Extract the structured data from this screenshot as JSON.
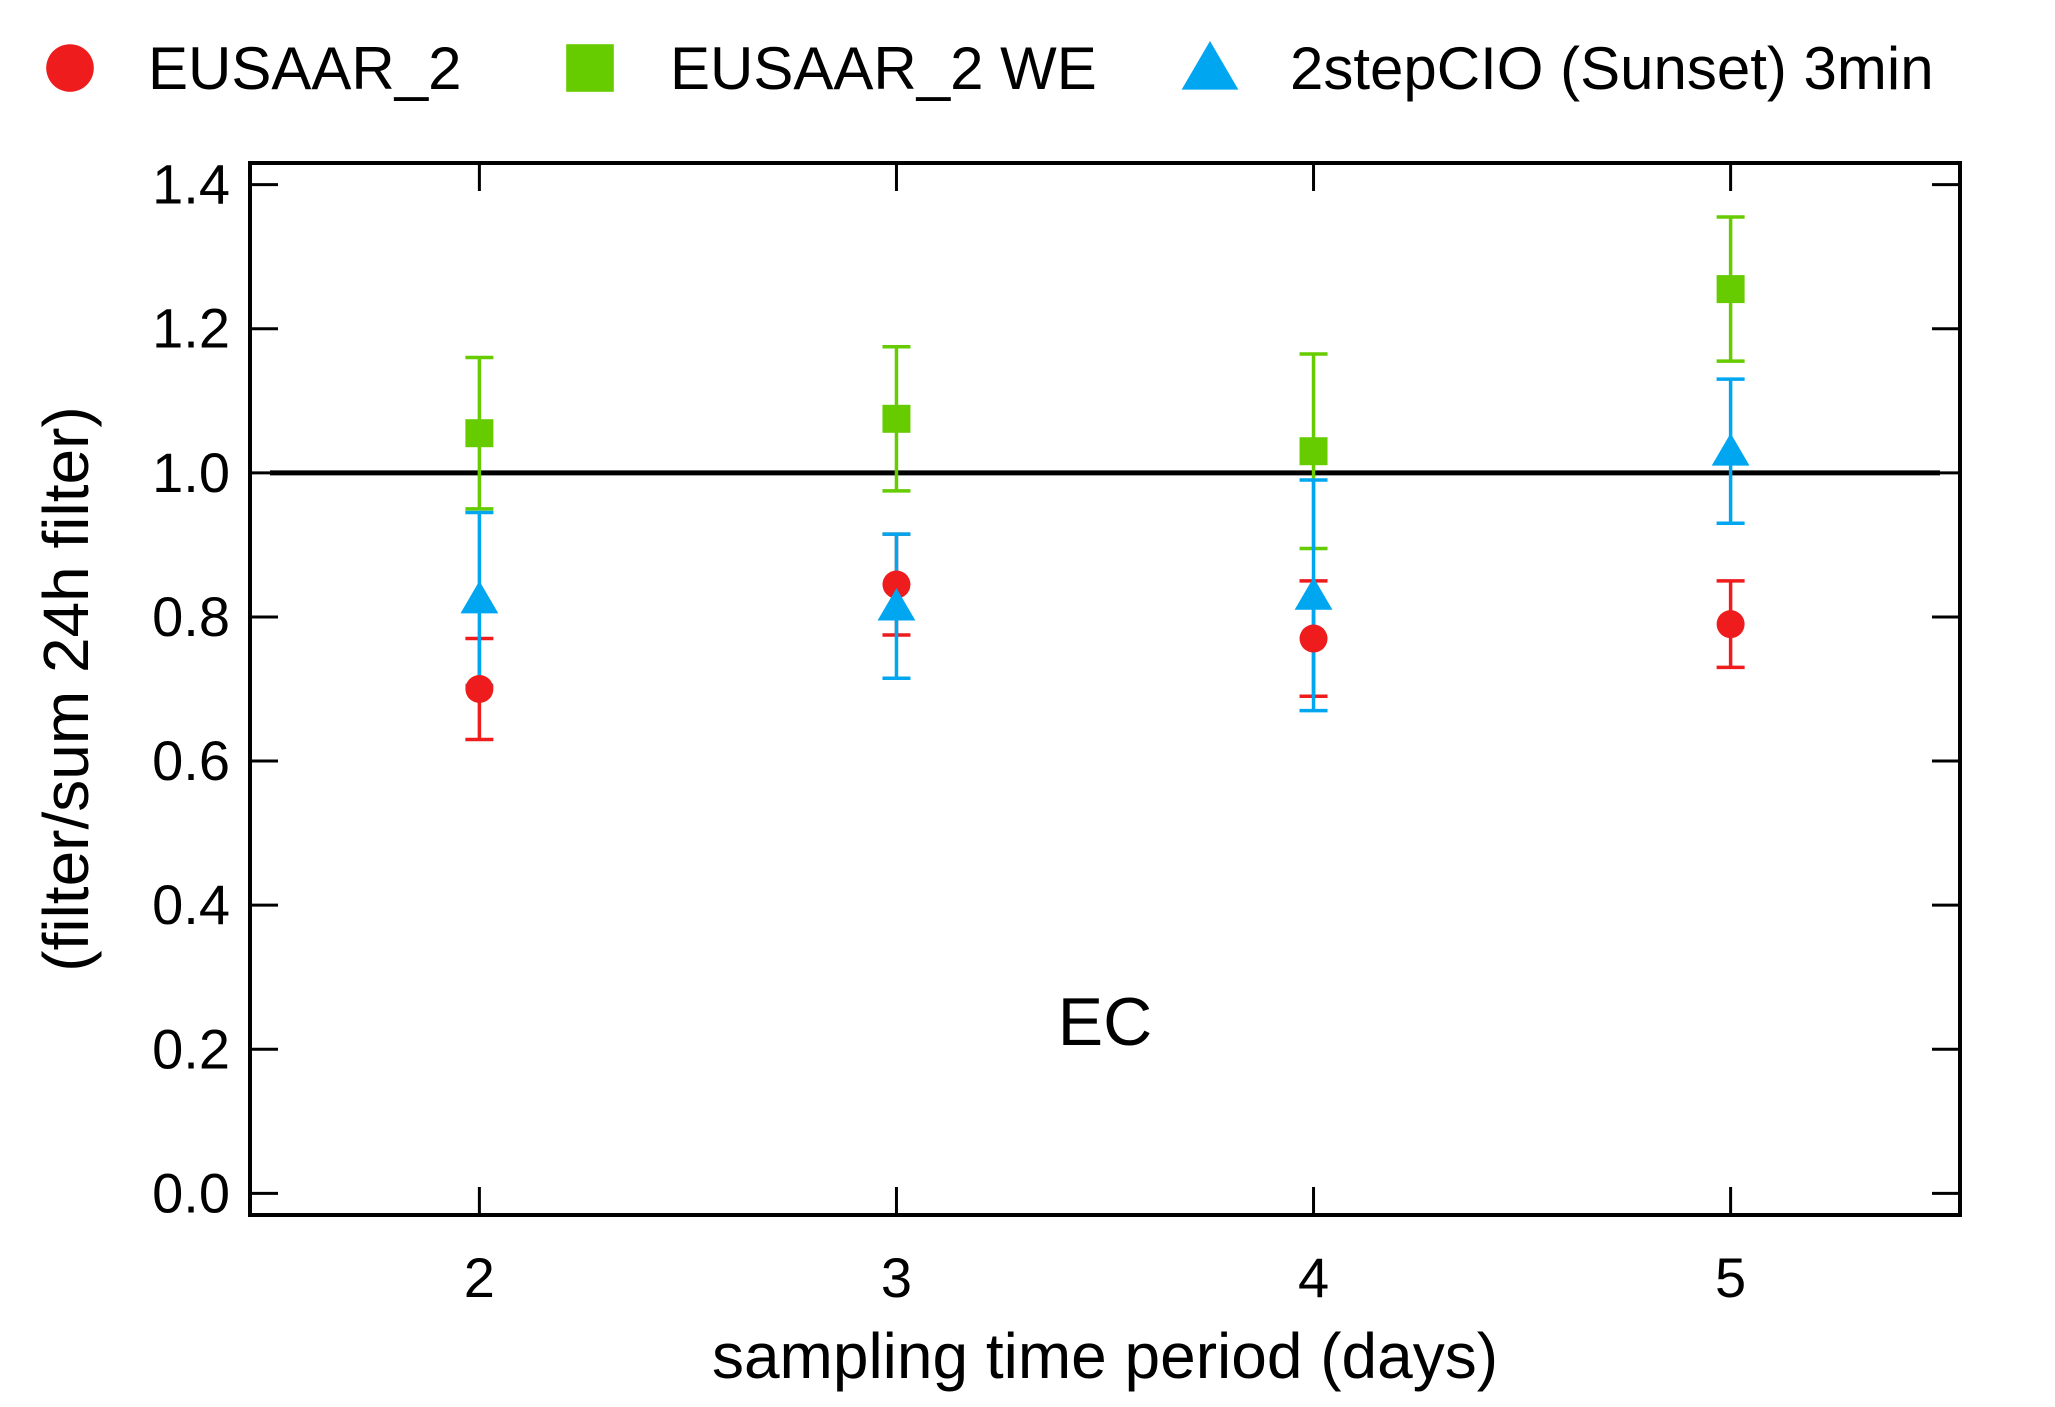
{
  "chart_data": {
    "type": "scatter",
    "title": "",
    "annotation": "EC",
    "xlabel": "sampling time period (days)",
    "ylabel": "(filter/sum 24h filter)",
    "xlim": [
      1.45,
      5.55
    ],
    "ylim": [
      -0.03,
      1.43
    ],
    "xticks": [
      2,
      3,
      4,
      5
    ],
    "xtick_labels": [
      "2",
      "3",
      "4",
      "5"
    ],
    "yticks": [
      0.0,
      0.2,
      0.4,
      0.6,
      0.8,
      1.0,
      1.2,
      1.4
    ],
    "ytick_labels": [
      "0.0",
      "0.2",
      "0.4",
      "0.6",
      "0.8",
      "1.0",
      "1.2",
      "1.4"
    ],
    "reference_line": 1.0,
    "grid": false,
    "legend_position": "top",
    "series": [
      {
        "name": "EUSAAR_2",
        "marker": "circle",
        "color": "#ee1c1c",
        "x": [
          2,
          3,
          4,
          5
        ],
        "y": [
          0.7,
          0.845,
          0.77,
          0.79
        ],
        "yerr": [
          0.07,
          0.07,
          0.08,
          0.06
        ]
      },
      {
        "name": "EUSAAR_2 WE",
        "marker": "square",
        "color": "#66cc00",
        "x": [
          2,
          3,
          4,
          5
        ],
        "y": [
          1.055,
          1.075,
          1.03,
          1.255
        ],
        "yerr": [
          0.105,
          0.1,
          0.135,
          0.1
        ]
      },
      {
        "name": "2stepCIO (Sunset) 3min",
        "marker": "triangle",
        "color": "#00a6f0",
        "x": [
          2,
          3,
          4,
          5
        ],
        "y": [
          0.825,
          0.815,
          0.83,
          1.03
        ],
        "yerr": [
          0.12,
          0.1,
          0.16,
          0.1
        ]
      }
    ]
  }
}
